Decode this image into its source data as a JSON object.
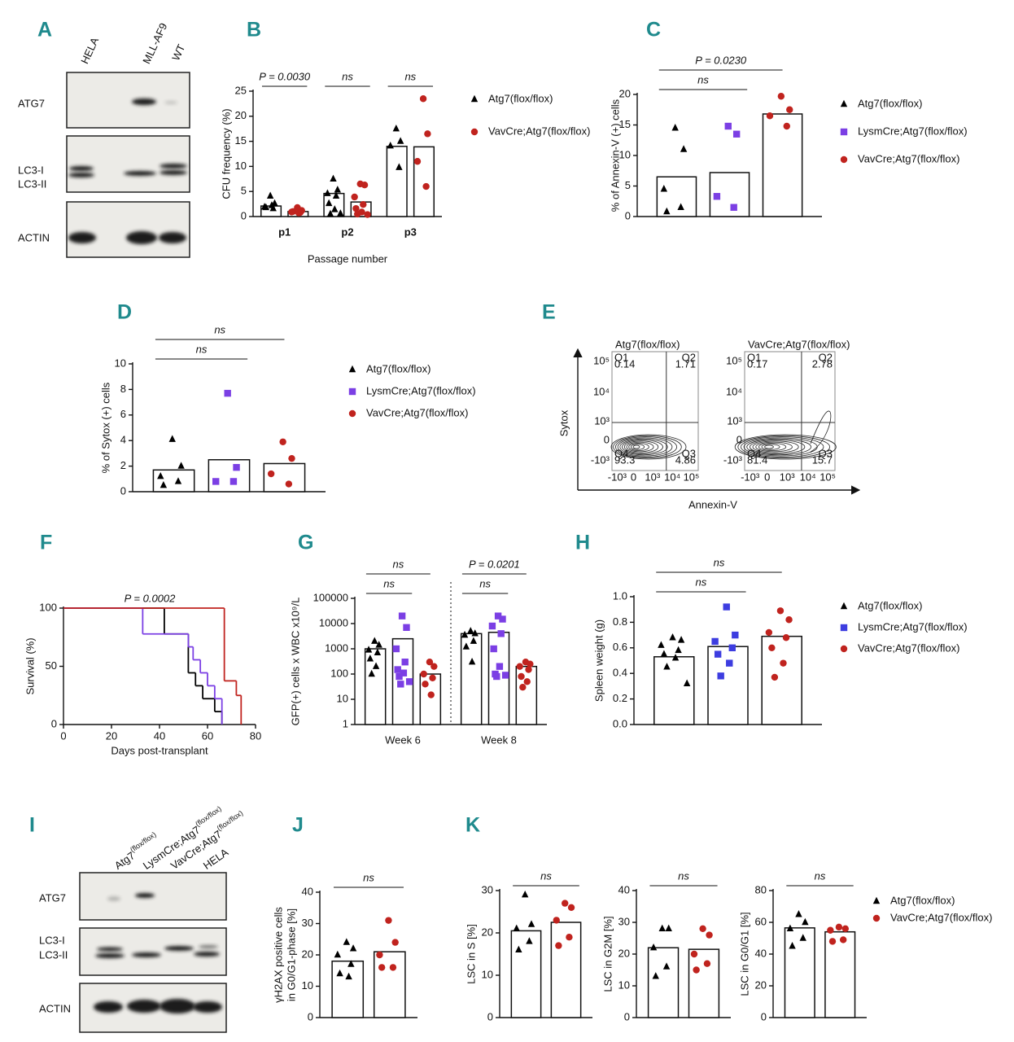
{
  "panel_labels": [
    "A",
    "B",
    "C",
    "D",
    "E",
    "F",
    "G",
    "H",
    "I",
    "J",
    "K"
  ],
  "chart_data": [
    {
      "type": "dotbar",
      "ylabel": "CFU frequency (%)",
      "xlabel": "Passage number",
      "categories": [
        "p1",
        "p2",
        "p3"
      ],
      "ylim": [
        0,
        25
      ],
      "yticks": [
        0,
        5,
        10,
        15,
        20,
        25
      ],
      "legend": true,
      "series": [
        {
          "name": "Atg7(flox/flox)",
          "color": "#000000",
          "marker": "triangle",
          "values": [
            2.1,
            4.6,
            14.0
          ],
          "points": [
            [
              4.1,
              2.6,
              1.9,
              1.6,
              1.8,
              2.2
            ],
            [
              7.5,
              5.3,
              4.6,
              4.1,
              2.6,
              1.4,
              0.5,
              0.6
            ],
            [
              17.5,
              15.0,
              14.1,
              9.8
            ]
          ]
        },
        {
          "name": "VavCre;Atg7(flox/flox)",
          "color": "#c0231e",
          "marker": "circle",
          "values": [
            1.0,
            2.9,
            13.9
          ],
          "points": [
            [
              1.8,
              1.2,
              0.9,
              0.8,
              1.0,
              0.7
            ],
            [
              6.5,
              6.3,
              3.9,
              2.4,
              1.6,
              0.9,
              0.5,
              0.4
            ],
            [
              23.5,
              16.5,
              11.0,
              6.0
            ]
          ]
        }
      ],
      "annotations": [
        "P = 0.0030",
        "ns",
        "ns"
      ]
    },
    {
      "type": "dotbar",
      "ylabel": "% of Annexin-V (+) cells",
      "categories": [
        null
      ],
      "ylim": [
        0,
        20
      ],
      "yticks": [
        0,
        5,
        10,
        15,
        20
      ],
      "legend": true,
      "series": [
        {
          "name": "Atg7(flox/flox)",
          "color": "#000000",
          "marker": "triangle",
          "values": [
            6.5
          ],
          "points": [
            [
              14.5,
              11.0,
              4.5,
              1.5,
              0.8
            ]
          ]
        },
        {
          "name": "LysmCre;Atg7(flox/flox)",
          "color": "#7b3fe4",
          "marker": "square",
          "values": [
            7.2
          ],
          "points": [
            [
              14.8,
              13.5,
              3.3,
              1.5
            ]
          ]
        },
        {
          "name": "VavCre;Atg7(flox/flox)",
          "color": "#c0231e",
          "marker": "circle",
          "values": [
            16.8
          ],
          "points": [
            [
              19.7,
              17.5,
              16.5,
              14.8
            ]
          ]
        }
      ],
      "annotations": [
        "ns",
        "P = 0.0230"
      ]
    },
    {
      "type": "dotbar",
      "ylabel": "% of Sytox (+) cells",
      "categories": [
        null
      ],
      "ylim": [
        0,
        10
      ],
      "yticks": [
        0,
        2,
        4,
        6,
        8,
        10
      ],
      "legend": true,
      "series": [
        {
          "name": "Atg7(flox/flox)",
          "color": "#000000",
          "marker": "triangle",
          "values": [
            1.7
          ],
          "points": [
            [
              4.1,
              2.0,
              1.2,
              0.8,
              0.5
            ]
          ]
        },
        {
          "name": "LysmCre;Atg7(flox/flox)",
          "color": "#7b3fe4",
          "marker": "square",
          "values": [
            2.5
          ],
          "points": [
            [
              7.7,
              1.9,
              0.8,
              0.8
            ]
          ]
        },
        {
          "name": "VavCre;Atg7(flox/flox)",
          "color": "#c0231e",
          "marker": "circle",
          "values": [
            2.2
          ],
          "points": [
            [
              3.9,
              2.6,
              1.4,
              0.6
            ]
          ]
        }
      ],
      "annotations": [
        "ns",
        "ns"
      ]
    },
    {
      "type": "step",
      "ylabel": "Survival (%)",
      "xlabel": "Days post-transplant",
      "xlim": [
        0,
        80
      ],
      "xticks": [
        0,
        20,
        40,
        60,
        80
      ],
      "ylim": [
        0,
        100
      ],
      "yticks": [
        0,
        50,
        100
      ],
      "series": [
        {
          "color": "#000000",
          "x": [
            0,
            42,
            52,
            55,
            58,
            63,
            66
          ],
          "values": [
            100,
            77.8,
            44.4,
            33.3,
            22.2,
            11.1,
            0
          ]
        },
        {
          "color": "#7b3fe4",
          "x": [
            0,
            33,
            52,
            54,
            57,
            60,
            63,
            66
          ],
          "values": [
            100,
            77.8,
            66.7,
            55.6,
            44.4,
            33.3,
            22.2,
            0
          ]
        },
        {
          "color": "#c0231e",
          "x": [
            0,
            67,
            72,
            74
          ],
          "values": [
            100,
            37.5,
            25,
            0
          ]
        }
      ],
      "annotations": [
        "P = 0.0002"
      ]
    },
    {
      "type": "dotbar",
      "ylabel": "GFP(+) cells x WBC x10⁹/L",
      "categories": [
        "Week 6",
        "Week 8"
      ],
      "log_scale": true,
      "ylim": [
        1,
        100000
      ],
      "yticks": [
        1,
        10,
        100,
        1000,
        10000,
        100000
      ],
      "legend": false,
      "series": [
        {
          "name": "Atg7(flox/flox)",
          "color": "#000000",
          "marker": "triangle",
          "values": [
            1000,
            4000
          ],
          "points": [
            [
              2000,
              1400,
              900,
              700,
              400,
              200,
              100
            ],
            [
              5000,
              4000,
              3500,
              2000,
              1200,
              300
            ]
          ]
        },
        {
          "name": "LysmCre;Atg7(flox/flox)",
          "color": "#7b3fe4",
          "marker": "square",
          "values": [
            2500,
            4500
          ],
          "points": [
            [
              20000,
              7000,
              1000,
              300,
              150,
              110,
              80,
              50,
              40
            ],
            [
              20000,
              15000,
              8000,
              4000,
              1000,
              200,
              100,
              90,
              80
            ]
          ]
        },
        {
          "name": "VavCre;Atg7(flox/flox)",
          "color": "#c0231e",
          "marker": "circle",
          "values": [
            100,
            200
          ],
          "points": [
            [
              300,
              200,
              100,
              70,
              40,
              15
            ],
            [
              300,
              250,
              200,
              150,
              80,
              50,
              30
            ]
          ]
        }
      ],
      "annotations": [
        "ns",
        "ns",
        "ns",
        "P = 0.0201"
      ]
    },
    {
      "type": "dotbar",
      "ylabel": "Spleen weight (g)",
      "categories": [
        null
      ],
      "ylim": [
        0,
        1
      ],
      "yticks": [
        {
          "value": 0,
          "label": "0.0"
        },
        0.2,
        0.4,
        0.6,
        0.8,
        {
          "value": 1,
          "label": "1.0"
        }
      ],
      "legend": true,
      "series": [
        {
          "name": "Atg7(flox/flox)",
          "color": "#000000",
          "marker": "triangle",
          "values": [
            0.53
          ],
          "points": [
            [
              0.68,
              0.66,
              0.62,
              0.58,
              0.55,
              0.52,
              0.45,
              0.32
            ]
          ]
        },
        {
          "name": "LysmCre;Atg7(flox/flox)",
          "color": "#3d3de0",
          "marker": "square",
          "values": [
            0.61
          ],
          "points": [
            [
              0.92,
              0.7,
              0.65,
              0.6,
              0.55,
              0.48,
              0.38
            ]
          ]
        },
        {
          "name": "VavCre;Atg7(flox/flox)",
          "color": "#c0231e",
          "marker": "circle",
          "values": [
            0.69
          ],
          "points": [
            [
              0.89,
              0.82,
              0.72,
              0.68,
              0.6,
              0.48,
              0.37
            ]
          ]
        }
      ],
      "annotations": [
        "ns",
        "ns"
      ]
    },
    {
      "type": "dotbar",
      "ylabel": [
        "γH2AX positive cells",
        "in G0/G1-phase [%]"
      ],
      "categories": [
        null
      ],
      "ylim": [
        0,
        40
      ],
      "yticks": [
        0,
        10,
        20,
        30,
        40
      ],
      "legend": false,
      "series": [
        {
          "name": "Atg7(flox/flox)",
          "color": "#000000",
          "marker": "triangle",
          "values": [
            18
          ],
          "points": [
            [
              24,
              22,
              20,
              17,
              14,
              13
            ]
          ]
        },
        {
          "name": "VavCre;Atg7(flox/flox)",
          "color": "#c0231e",
          "marker": "circle",
          "values": [
            21
          ],
          "points": [
            [
              31,
              24,
              20,
              16,
              16
            ]
          ]
        }
      ],
      "annotations": [
        "ns"
      ]
    },
    {
      "type": "dotbar",
      "ylabel": "LSC in S [%]",
      "categories": [
        null
      ],
      "ylim": [
        0,
        30
      ],
      "yticks": [
        0,
        10,
        20,
        30
      ],
      "legend": false,
      "series": [
        {
          "name": "Atg7(flox/flox)",
          "color": "#000000",
          "marker": "triangle",
          "values": [
            20.5
          ],
          "points": [
            [
              29,
              22,
              21,
              18,
              16
            ]
          ]
        },
        {
          "name": "VavCre;Atg7(flox/flox)",
          "color": "#c0231e",
          "marker": "circle",
          "values": [
            22.5
          ],
          "points": [
            [
              27,
              26,
              23,
              19,
              17
            ]
          ]
        }
      ],
      "annotations": [
        "ns"
      ]
    },
    {
      "type": "dotbar",
      "ylabel": "LSC in G2M [%]",
      "categories": [
        null
      ],
      "ylim": [
        0,
        40
      ],
      "yticks": [
        0,
        10,
        20,
        30,
        40
      ],
      "legend": false,
      "series": [
        {
          "name": "Atg7(flox/flox)",
          "color": "#000000",
          "marker": "triangle",
          "values": [
            22
          ],
          "points": [
            [
              28,
              28,
              22,
              16,
              13
            ]
          ]
        },
        {
          "name": "VavCre;Atg7(flox/flox)",
          "color": "#c0231e",
          "marker": "circle",
          "values": [
            21.5
          ],
          "points": [
            [
              28,
              26,
              20,
              17,
              15
            ]
          ]
        }
      ],
      "annotations": [
        "ns"
      ]
    },
    {
      "type": "dotbar",
      "ylabel": "LSC in G0/G1 [%]",
      "categories": [
        null
      ],
      "ylim": [
        0,
        80
      ],
      "yticks": [
        0,
        20,
        40,
        60,
        80
      ],
      "legend": true,
      "series": [
        {
          "name": "Atg7(flox/flox)",
          "color": "#000000",
          "marker": "triangle",
          "values": [
            56.5
          ],
          "points": [
            [
              65,
              60,
              56,
              50,
              45
            ]
          ]
        },
        {
          "name": "VavCre;Atg7(flox/flox)",
          "color": "#c0231e",
          "marker": "circle",
          "values": [
            54
          ],
          "points": [
            [
              57,
              56,
              55,
              49,
              48
            ]
          ]
        }
      ],
      "annotations": [
        "ns"
      ]
    }
  ],
  "blots": [
    {
      "lanes": [
        "HELA",
        "MLL-AF9",
        "WT"
      ],
      "rows": [
        [
          "ATG7"
        ],
        [
          "LC3-I",
          "LC3-II"
        ],
        [
          "ACTIN"
        ]
      ]
    },
    {
      "lanes": [
        {
          "text": "Atg7",
          "sup": "(flox/flox)"
        },
        {
          "text": "LysmCre;Atg7",
          "sup": "(flox/flox)"
        },
        {
          "text": "VavCre;Atg7",
          "sup": "(flox/flox)"
        },
        {
          "text": "HELA"
        }
      ],
      "rows": [
        [
          "ATG7"
        ],
        [
          "LC3-I",
          "LC3-II"
        ],
        [
          "ACTIN"
        ]
      ]
    }
  ],
  "flow": {
    "xlabel": "Annexin-V",
    "ylabel": "Sytox",
    "yticks": [
      "10⁵",
      "10⁴",
      "10³",
      "0",
      "-10³"
    ],
    "xticks": [
      "-10³",
      "0",
      "10³",
      "10⁴",
      "10⁵"
    ],
    "plots": [
      {
        "title": "Atg7(flox/flox)",
        "quadrants": [
          {
            "name": "Q1",
            "value": 0.14
          },
          {
            "name": "Q2",
            "value": 1.71
          },
          {
            "name": "Q3",
            "value": 4.86
          },
          {
            "name": "Q4",
            "value": 93.3
          }
        ]
      },
      {
        "title": "VavCre;Atg7(flox/flox)",
        "quadrants": [
          {
            "name": "Q1",
            "value": 0.17
          },
          {
            "name": "Q2",
            "value": 2.78
          },
          {
            "name": "Q3",
            "value": 15.7
          },
          {
            "name": "Q4",
            "value": 81.4
          }
        ]
      }
    ]
  }
}
